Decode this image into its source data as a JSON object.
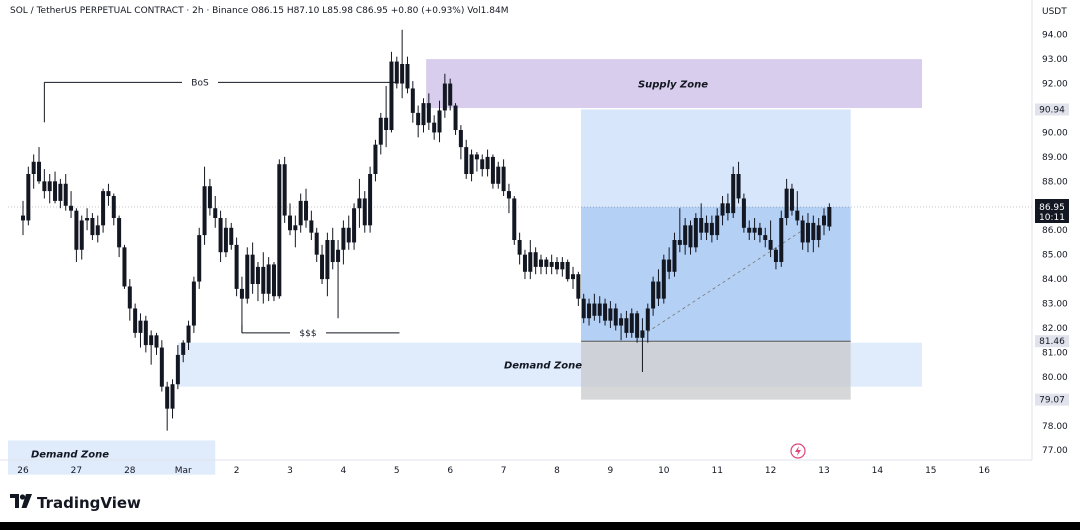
{
  "header": {
    "symbol": "SOL / TetherUS PERPETUAL CONTRACT · 2h · Binance  O86.15  H87.10  L85.98  C86.95  +0.80 (+0.93%)  Vol1.84M",
    "currency": "USDT"
  },
  "brand": {
    "logo_glyph": "𝟏𝟕",
    "name": "TradingView"
  },
  "colors": {
    "candle": "#131722",
    "supply_zone": "#d1c4e9",
    "demand_zone": "#dbe9fb",
    "position_light": "#d3e3fa",
    "position_dark": "#a7c8f3",
    "position_gray": "#c8c9cc",
    "label_bg": "#e0e3eb",
    "price_tag_bg": "#131722"
  },
  "chart_data": {
    "type": "candlestick",
    "y_axis": {
      "min": 76.6,
      "max": 94.6,
      "ticks": [
        "94.00",
        "93.00",
        "92.00",
        "91.00",
        "90.00",
        "89.00",
        "88.00",
        "87.00",
        "86.00",
        "85.00",
        "84.00",
        "83.00",
        "82.00",
        "81.00",
        "80.00",
        "79.00",
        "78.00",
        "77.00"
      ]
    },
    "x_axis": {
      "ticks": [
        "26",
        "27",
        "28",
        "Mar",
        "2",
        "3",
        "4",
        "5",
        "6",
        "7",
        "8",
        "9",
        "10",
        "11",
        "12",
        "13",
        "14",
        "15",
        "16"
      ]
    },
    "price_labels": [
      {
        "text": "90.94",
        "price": 90.94,
        "style": "light"
      },
      {
        "text": "86.95",
        "sub": "10:11",
        "price": 86.95,
        "style": "dark"
      },
      {
        "text": "81.46",
        "price": 81.46,
        "style": "light"
      },
      {
        "text": "79.07",
        "price": 79.07,
        "style": "light"
      }
    ],
    "annotations": [
      {
        "text": "BoS",
        "kind": "line",
        "price": 92.05,
        "x_from": 0.4,
        "x_to": 7.0
      },
      {
        "text": "$$$",
        "kind": "line",
        "price": 81.8,
        "x_from": 4.1,
        "x_to": 7.05
      },
      {
        "text": "Supply Zone",
        "kind": "zone",
        "x_from": 7.55,
        "x_to": 16.9,
        "y_top": 93.0,
        "y_bottom": 91.0
      },
      {
        "text": "Demand Zone",
        "kind": "zone",
        "x_from": 2.9,
        "x_to": 16.9,
        "y_top": 81.4,
        "y_bottom": 79.6
      },
      {
        "text": "Demand Zone",
        "kind": "zone",
        "x_from": -0.3,
        "x_to": 3.6,
        "y_top": 77.4,
        "y_bottom": 76.0
      }
    ],
    "position_box": {
      "x_from": 10.45,
      "x_to": 15.5,
      "target": 90.94,
      "current": 86.95,
      "entry": 81.46,
      "stop": 79.07
    },
    "candles": [
      [
        0.0,
        86.6,
        87.2,
        85.8,
        86.4
      ],
      [
        0.1,
        86.4,
        88.6,
        86.2,
        88.3
      ],
      [
        0.2,
        88.3,
        89.1,
        87.7,
        88.8
      ],
      [
        0.3,
        88.8,
        89.4,
        87.9,
        88.0
      ],
      [
        0.4,
        88.0,
        88.5,
        87.3,
        87.6
      ],
      [
        0.5,
        87.6,
        88.3,
        87.1,
        88.0
      ],
      [
        0.6,
        88.0,
        88.4,
        87.1,
        87.2
      ],
      [
        0.7,
        87.2,
        88.1,
        86.9,
        87.9
      ],
      [
        0.8,
        87.9,
        88.3,
        86.8,
        87.0
      ],
      [
        0.9,
        87.0,
        87.6,
        86.5,
        86.8
      ],
      [
        1.0,
        86.8,
        86.9,
        84.7,
        85.2
      ],
      [
        1.1,
        85.2,
        86.6,
        84.8,
        86.4
      ],
      [
        1.2,
        86.4,
        86.9,
        86.0,
        86.5
      ],
      [
        1.3,
        86.5,
        86.7,
        85.6,
        85.8
      ],
      [
        1.4,
        85.8,
        86.6,
        85.5,
        86.2
      ],
      [
        1.5,
        86.2,
        87.7,
        85.9,
        87.6
      ],
      [
        1.6,
        87.6,
        87.9,
        87.0,
        87.4
      ],
      [
        1.7,
        87.4,
        87.5,
        86.2,
        86.5
      ],
      [
        1.8,
        86.5,
        86.6,
        84.9,
        85.3
      ],
      [
        1.9,
        85.3,
        85.4,
        83.6,
        83.7
      ],
      [
        2.0,
        83.7,
        84.0,
        82.3,
        82.8
      ],
      [
        2.1,
        82.8,
        83.0,
        81.6,
        81.8
      ],
      [
        2.2,
        81.8,
        82.6,
        81.2,
        82.3
      ],
      [
        2.3,
        82.3,
        82.5,
        81.0,
        81.3
      ],
      [
        2.4,
        81.3,
        81.9,
        80.5,
        81.7
      ],
      [
        2.5,
        81.7,
        81.8,
        80.9,
        81.2
      ],
      [
        2.6,
        81.2,
        81.5,
        79.4,
        79.6
      ],
      [
        2.7,
        79.6,
        79.8,
        77.8,
        78.7
      ],
      [
        2.8,
        78.7,
        79.9,
        78.3,
        79.7
      ],
      [
        2.9,
        79.7,
        81.3,
        79.5,
        80.9
      ],
      [
        3.0,
        80.9,
        81.5,
        80.6,
        81.4
      ],
      [
        3.1,
        81.4,
        82.3,
        81.1,
        82.1
      ],
      [
        3.2,
        82.1,
        84.1,
        81.8,
        83.9
      ],
      [
        3.3,
        83.9,
        86.1,
        83.6,
        85.8
      ],
      [
        3.4,
        85.8,
        88.6,
        85.4,
        87.8
      ],
      [
        3.5,
        87.8,
        88.1,
        86.6,
        86.9
      ],
      [
        3.6,
        86.9,
        87.4,
        86.1,
        86.5
      ],
      [
        3.7,
        86.5,
        86.8,
        84.7,
        85.1
      ],
      [
        3.8,
        85.1,
        86.5,
        84.9,
        86.1
      ],
      [
        3.9,
        86.1,
        86.3,
        85.2,
        85.4
      ],
      [
        4.0,
        85.4,
        85.7,
        83.3,
        83.6
      ],
      [
        4.1,
        83.6,
        84.1,
        81.8,
        83.2
      ],
      [
        4.2,
        83.2,
        85.3,
        83.0,
        85.0
      ],
      [
        4.3,
        85.0,
        85.5,
        83.4,
        83.8
      ],
      [
        4.4,
        83.8,
        84.7,
        83.1,
        84.5
      ],
      [
        4.5,
        84.5,
        85.1,
        83.0,
        83.4
      ],
      [
        4.6,
        83.4,
        84.9,
        83.1,
        84.6
      ],
      [
        4.7,
        84.6,
        84.7,
        83.1,
        83.3
      ],
      [
        4.8,
        83.3,
        88.9,
        83.2,
        88.7
      ],
      [
        4.9,
        88.7,
        89.0,
        86.3,
        86.6
      ],
      [
        5.0,
        86.6,
        87.1,
        85.8,
        86.0
      ],
      [
        5.1,
        86.0,
        86.6,
        85.3,
        86.2
      ],
      [
        5.2,
        86.2,
        87.5,
        85.9,
        87.2
      ],
      [
        5.3,
        87.2,
        87.7,
        86.1,
        86.4
      ],
      [
        5.4,
        86.4,
        86.8,
        85.6,
        85.9
      ],
      [
        5.5,
        85.9,
        86.1,
        84.7,
        85.0
      ],
      [
        5.6,
        85.0,
        85.4,
        83.8,
        84.0
      ],
      [
        5.7,
        84.0,
        85.9,
        83.3,
        85.6
      ],
      [
        5.8,
        85.6,
        86.1,
        84.4,
        84.7
      ],
      [
        5.9,
        84.7,
        85.6,
        82.4,
        85.2
      ],
      [
        6.0,
        85.2,
        86.4,
        84.6,
        86.1
      ],
      [
        6.1,
        86.1,
        86.6,
        85.2,
        85.5
      ],
      [
        6.2,
        85.5,
        87.1,
        85.2,
        86.9
      ],
      [
        6.3,
        86.9,
        88.1,
        86.1,
        87.3
      ],
      [
        6.4,
        87.3,
        87.6,
        85.9,
        86.2
      ],
      [
        6.5,
        86.2,
        88.6,
        85.9,
        88.3
      ],
      [
        6.6,
        88.3,
        89.7,
        88.0,
        89.5
      ],
      [
        6.7,
        89.5,
        90.8,
        89.1,
        90.6
      ],
      [
        6.8,
        90.6,
        91.9,
        89.4,
        90.1
      ],
      [
        6.9,
        90.1,
        93.3,
        90.0,
        92.9
      ],
      [
        7.0,
        92.9,
        93.1,
        91.8,
        92.0
      ],
      [
        7.1,
        92.0,
        94.2,
        91.4,
        92.8
      ],
      [
        7.2,
        92.8,
        93.1,
        91.6,
        91.8
      ],
      [
        7.3,
        91.8,
        92.1,
        90.4,
        90.8
      ],
      [
        7.4,
        90.8,
        91.1,
        89.8,
        90.3
      ],
      [
        7.5,
        90.3,
        91.4,
        90.0,
        91.2
      ],
      [
        7.6,
        91.2,
        91.6,
        90.1,
        90.4
      ],
      [
        7.7,
        90.4,
        90.7,
        89.7,
        90.0
      ],
      [
        7.8,
        90.0,
        91.3,
        89.6,
        90.9
      ],
      [
        7.9,
        90.9,
        92.4,
        90.6,
        92.0
      ],
      [
        8.0,
        92.0,
        92.2,
        90.9,
        91.1
      ],
      [
        8.1,
        91.1,
        91.2,
        89.9,
        90.1
      ],
      [
        8.2,
        90.1,
        90.3,
        88.9,
        89.4
      ],
      [
        8.3,
        89.4,
        89.7,
        88.1,
        88.3
      ],
      [
        8.4,
        88.3,
        89.3,
        88.0,
        89.1
      ],
      [
        8.5,
        89.1,
        89.2,
        88.4,
        88.9
      ],
      [
        8.6,
        88.9,
        89.1,
        88.2,
        88.5
      ],
      [
        8.7,
        88.5,
        89.3,
        88.2,
        89.0
      ],
      [
        8.8,
        89.0,
        89.1,
        87.7,
        87.9
      ],
      [
        8.9,
        87.9,
        88.8,
        87.7,
        88.6
      ],
      [
        9.0,
        88.6,
        88.9,
        87.4,
        87.6
      ],
      [
        9.1,
        87.6,
        87.9,
        86.7,
        87.3
      ],
      [
        9.2,
        87.3,
        87.4,
        85.4,
        85.6
      ],
      [
        9.3,
        85.6,
        85.9,
        84.6,
        85.0
      ],
      [
        9.4,
        85.0,
        85.2,
        84.0,
        84.3
      ],
      [
        9.5,
        84.3,
        85.6,
        84.0,
        85.1
      ],
      [
        9.6,
        85.1,
        85.3,
        84.2,
        84.5
      ],
      [
        9.7,
        84.5,
        85.0,
        84.2,
        84.8
      ],
      [
        9.8,
        84.8,
        84.9,
        84.2,
        84.5
      ],
      [
        9.9,
        84.5,
        85.0,
        84.2,
        84.7
      ],
      [
        10.0,
        84.7,
        84.9,
        84.2,
        84.4
      ],
      [
        10.1,
        84.4,
        84.9,
        84.1,
        84.7
      ],
      [
        10.2,
        84.7,
        84.8,
        83.9,
        84.0
      ],
      [
        10.3,
        84.0,
        84.5,
        83.6,
        84.2
      ],
      [
        10.4,
        84.2,
        84.3,
        82.9,
        83.2
      ],
      [
        10.5,
        83.2,
        83.4,
        82.2,
        82.4
      ],
      [
        10.6,
        82.4,
        83.2,
        82.1,
        83.0
      ],
      [
        10.7,
        83.0,
        83.4,
        82.3,
        82.5
      ],
      [
        10.8,
        82.5,
        83.3,
        82.2,
        83.0
      ],
      [
        10.9,
        83.0,
        83.2,
        82.1,
        82.3
      ],
      [
        11.0,
        82.3,
        83.1,
        82.0,
        82.8
      ],
      [
        11.1,
        82.8,
        83.0,
        81.9,
        82.1
      ],
      [
        11.2,
        82.1,
        82.6,
        81.5,
        82.4
      ],
      [
        11.3,
        82.4,
        82.7,
        81.6,
        81.8
      ],
      [
        11.4,
        81.8,
        82.8,
        81.6,
        82.6
      ],
      [
        11.5,
        82.6,
        82.7,
        81.4,
        81.6
      ],
      [
        11.6,
        81.6,
        82.4,
        80.2,
        81.9
      ],
      [
        11.7,
        81.9,
        83.0,
        81.4,
        82.8
      ],
      [
        11.8,
        82.8,
        84.1,
        82.5,
        83.9
      ],
      [
        11.9,
        83.9,
        84.4,
        82.9,
        83.2
      ],
      [
        12.0,
        83.2,
        85.0,
        83.0,
        84.8
      ],
      [
        12.1,
        84.8,
        85.3,
        84.0,
        84.3
      ],
      [
        12.2,
        84.3,
        85.9,
        84.1,
        85.6
      ],
      [
        12.3,
        85.6,
        86.9,
        85.1,
        85.4
      ],
      [
        12.4,
        85.4,
        86.5,
        85.0,
        86.2
      ],
      [
        12.5,
        86.2,
        86.4,
        85.0,
        85.3
      ],
      [
        12.6,
        85.3,
        86.7,
        85.1,
        86.5
      ],
      [
        12.7,
        86.5,
        87.1,
        85.6,
        85.9
      ],
      [
        12.8,
        85.9,
        86.6,
        85.6,
        86.3
      ],
      [
        12.9,
        86.3,
        86.6,
        85.5,
        85.8
      ],
      [
        13.0,
        85.8,
        86.9,
        85.6,
        86.6
      ],
      [
        13.1,
        86.6,
        87.4,
        86.2,
        87.1
      ],
      [
        13.2,
        87.1,
        87.5,
        86.4,
        86.7
      ],
      [
        13.3,
        86.7,
        88.6,
        86.5,
        88.3
      ],
      [
        13.4,
        88.3,
        88.8,
        87.1,
        87.3
      ],
      [
        13.5,
        87.3,
        87.5,
        85.9,
        86.1
      ],
      [
        13.6,
        86.1,
        86.4,
        85.6,
        85.9
      ],
      [
        13.7,
        85.9,
        86.5,
        85.6,
        86.1
      ],
      [
        13.8,
        86.1,
        86.3,
        85.5,
        85.8
      ],
      [
        13.9,
        85.8,
        86.1,
        85.3,
        85.6
      ],
      [
        14.0,
        85.6,
        86.4,
        84.9,
        85.2
      ],
      [
        14.1,
        85.2,
        85.3,
        84.4,
        84.7
      ],
      [
        14.2,
        84.7,
        86.8,
        84.5,
        86.5
      ],
      [
        14.3,
        86.5,
        88.1,
        86.2,
        87.7
      ],
      [
        14.4,
        87.7,
        87.9,
        86.6,
        86.8
      ],
      [
        14.5,
        86.8,
        87.6,
        86.2,
        86.4
      ],
      [
        14.6,
        86.4,
        86.6,
        85.2,
        85.5
      ],
      [
        14.7,
        85.5,
        86.7,
        85.1,
        86.3
      ],
      [
        14.8,
        86.3,
        86.6,
        85.1,
        85.6
      ],
      [
        14.9,
        85.6,
        86.5,
        85.3,
        86.2
      ],
      [
        15.0,
        86.2,
        86.9,
        85.8,
        86.6
      ],
      [
        15.1,
        86.15,
        87.1,
        85.98,
        86.95
      ]
    ],
    "dashed_trend": {
      "from": [
        11.6,
        81.7
      ],
      "to": [
        14.6,
        86.0
      ]
    },
    "current_price": 86.95
  }
}
